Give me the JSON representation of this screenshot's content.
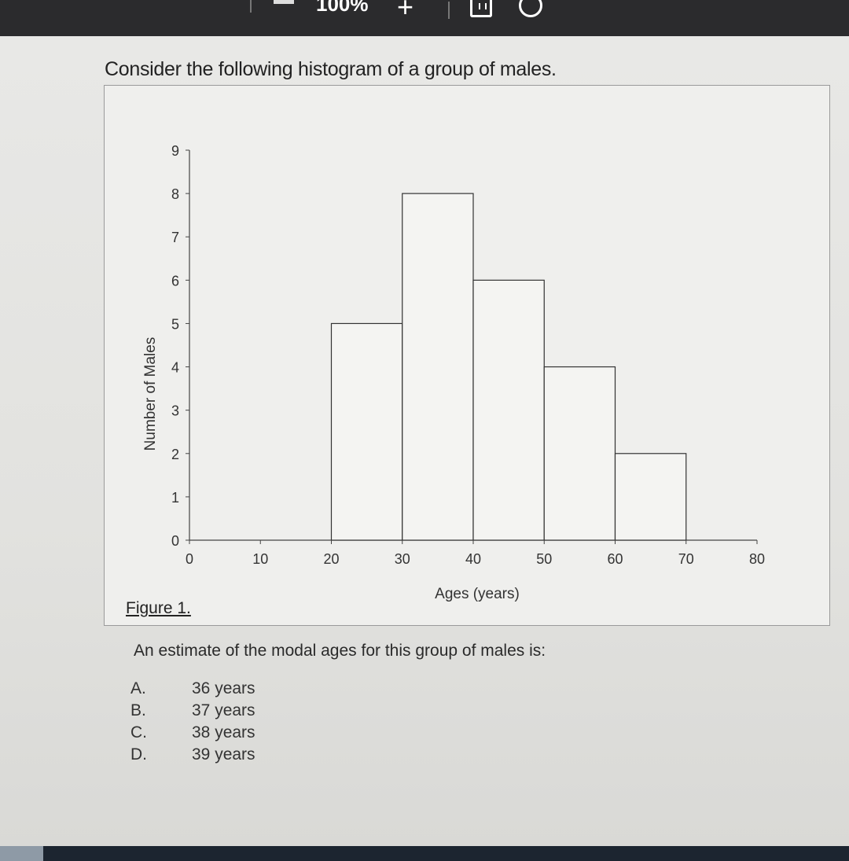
{
  "toolbar": {
    "zoom_label": "100%",
    "zoom_in_label": "+",
    "fit_icon": "fit-page-icon",
    "rotate_icon": "rotate-icon"
  },
  "question": {
    "intro": "Consider the following histogram of a group of males.",
    "figure_label": "Figure 1.",
    "prompt": "An estimate of the modal ages for this group of males is:",
    "options": [
      {
        "letter": "A.",
        "text": "36 years"
      },
      {
        "letter": "B.",
        "text": "37 years"
      },
      {
        "letter": "C.",
        "text": "38 years"
      },
      {
        "letter": "D.",
        "text": "39 years"
      }
    ]
  },
  "chart_data": {
    "type": "bar",
    "title": "",
    "xlabel": "Ages (years)",
    "ylabel": "Number of Males",
    "xlim": [
      0,
      80
    ],
    "ylim": [
      0,
      9
    ],
    "x_ticks": [
      0,
      10,
      20,
      30,
      40,
      50,
      60,
      70,
      80
    ],
    "y_ticks": [
      0,
      1,
      2,
      3,
      4,
      5,
      6,
      7,
      8,
      9
    ],
    "bins": [
      {
        "start": 20,
        "end": 30,
        "value": 5
      },
      {
        "start": 30,
        "end": 40,
        "value": 8
      },
      {
        "start": 40,
        "end": 50,
        "value": 6
      },
      {
        "start": 50,
        "end": 60,
        "value": 4
      },
      {
        "start": 60,
        "end": 70,
        "value": 2
      }
    ],
    "grid": false,
    "colors": {
      "bar_fill": "#f4f4f2",
      "bar_stroke": "#333333",
      "axis": "#444444"
    }
  }
}
